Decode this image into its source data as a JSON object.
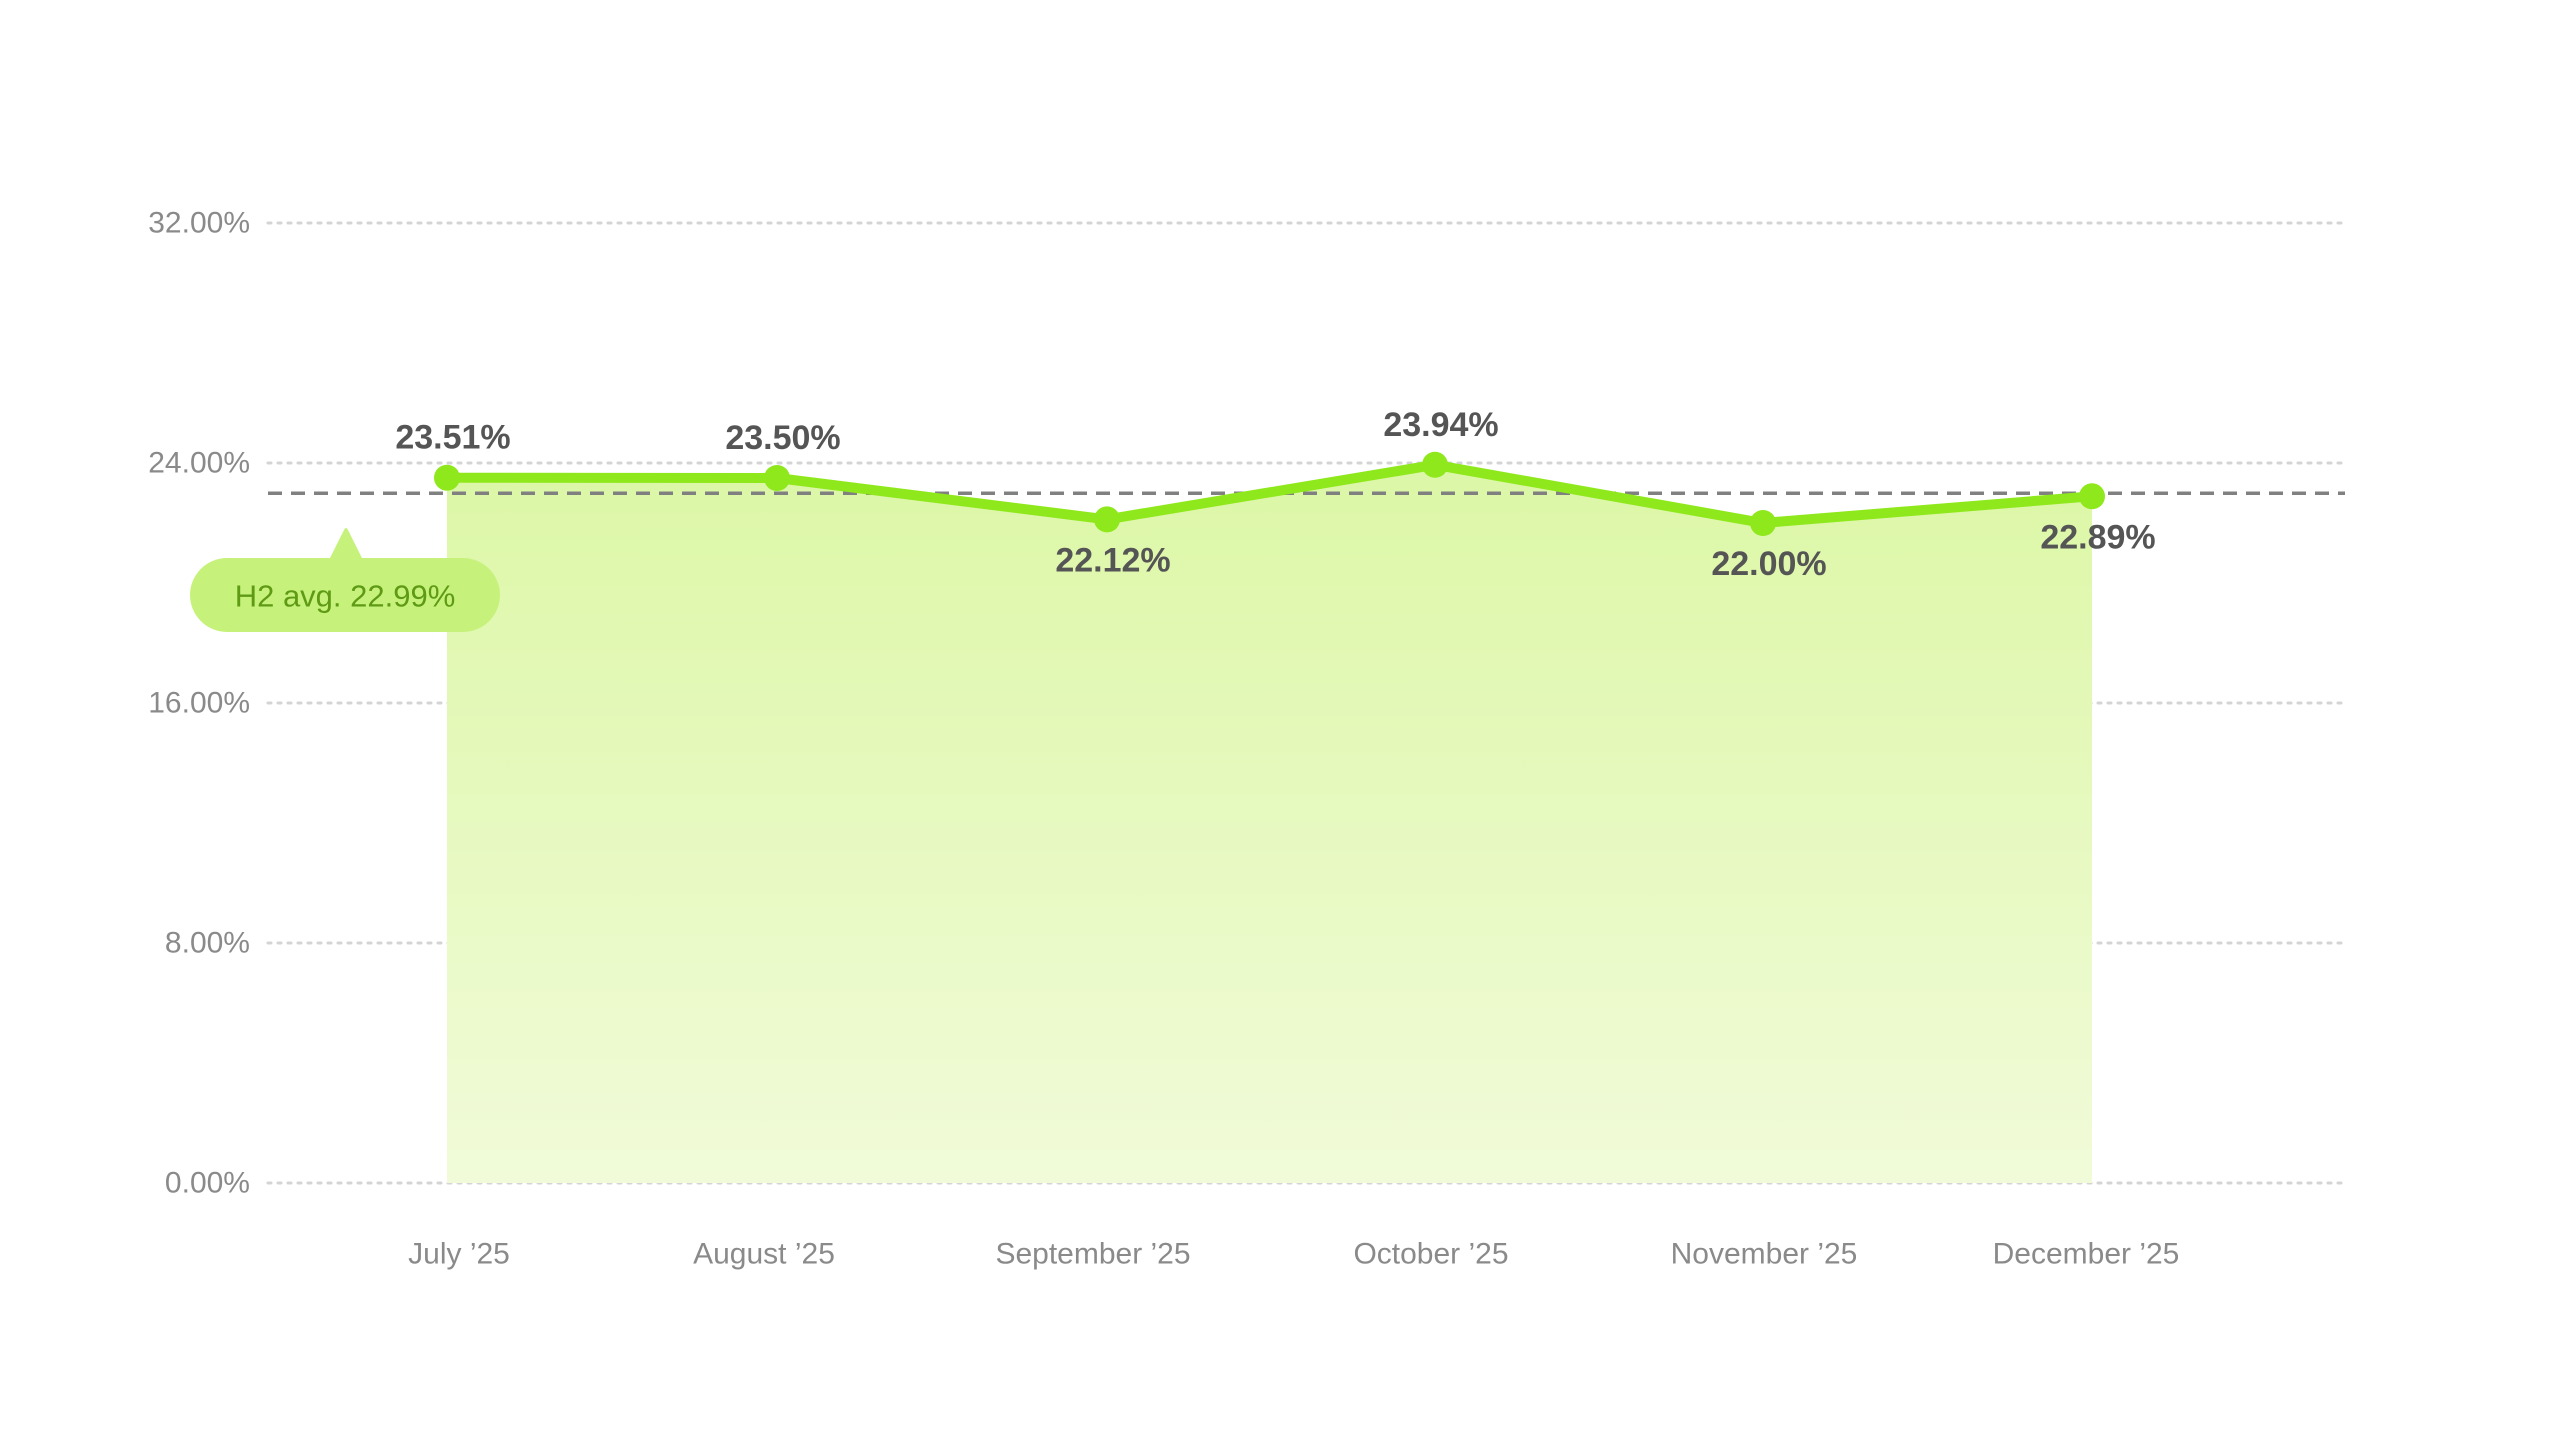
{
  "chart_data": {
    "type": "area",
    "categories": [
      "July ’25",
      "August ’25",
      "September ’25",
      "October ’25",
      "November ’25",
      "December ’25"
    ],
    "series": [
      {
        "values": [
          23.51,
          23.5,
          22.12,
          23.94,
          22.0,
          22.89
        ],
        "value_labels": [
          "23.51%",
          "23.50%",
          "22.12%",
          "23.94%",
          "22.00%",
          "22.89%"
        ]
      }
    ],
    "y_ticks": [
      0,
      8,
      16,
      24,
      32
    ],
    "y_tick_labels": [
      "0.00%",
      "8.00%",
      "16.00%",
      "24.00%",
      "32.00%"
    ],
    "ylim": [
      0,
      32
    ],
    "grid": true,
    "reference_line": {
      "value": 22.99,
      "label": "H2 avg. 22.99%"
    },
    "colors": {
      "line": "#8ee81b",
      "area_top": "#dcf7a6",
      "area_bottom": "#f1fbd9",
      "grid": "#d4d4d4",
      "reference": "#808080",
      "badge_bg": "#c6f27c",
      "badge_text": "#5e9a14"
    }
  }
}
